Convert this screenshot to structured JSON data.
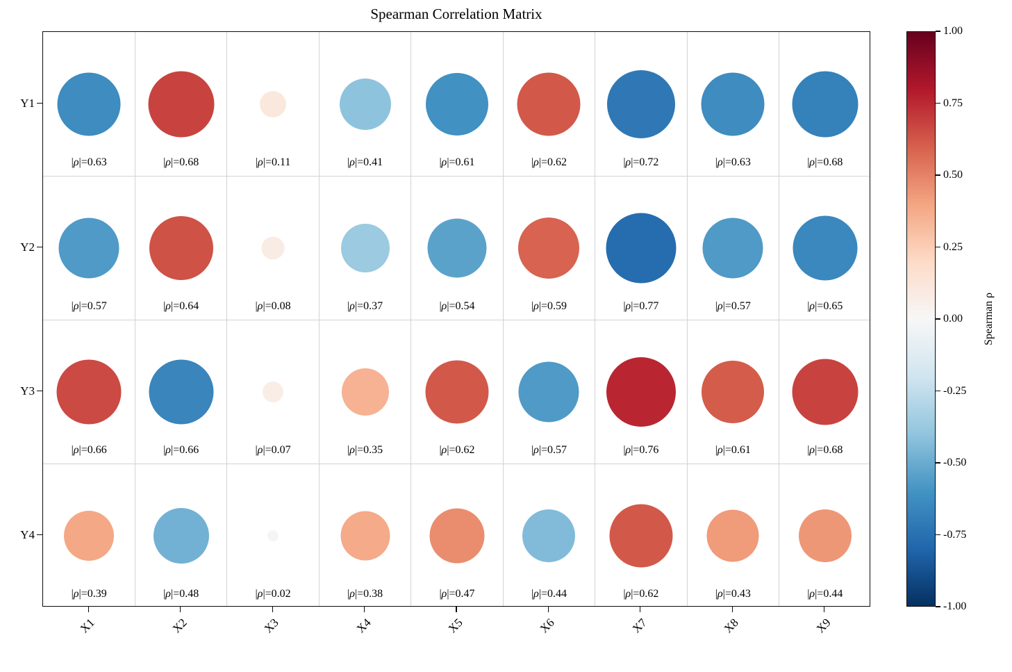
{
  "figure": {
    "background": "#ffffff",
    "title": "Spearman Correlation Matrix"
  },
  "chart_data": {
    "type": "scatter",
    "subtype": "correlation-bubble-matrix",
    "title": "Spearman Correlation Matrix",
    "x_categories": [
      "X1",
      "X2",
      "X3",
      "X4",
      "X5",
      "X6",
      "X7",
      "X8",
      "X9"
    ],
    "y_categories": [
      "Y1",
      "Y2",
      "Y3",
      "Y4"
    ],
    "grid": true,
    "rows": [
      {
        "y": "Y1",
        "cells": [
          {
            "x": "X1",
            "rho": -0.63,
            "label": "|ρ|=0.63",
            "color": "#3e8cc0",
            "d": 91
          },
          {
            "x": "X2",
            "rho": 0.68,
            "label": "|ρ|=0.68",
            "color": "#c8433f",
            "d": 95
          },
          {
            "x": "X3",
            "rho": 0.11,
            "label": "|ρ|=0.11",
            "color": "#fae8dd",
            "d": 38
          },
          {
            "x": "X4",
            "rho": -0.41,
            "label": "|ρ|=0.41",
            "color": "#8ec3dd",
            "d": 74
          },
          {
            "x": "X5",
            "rho": -0.61,
            "label": "|ρ|=0.61",
            "color": "#4191c2",
            "d": 90
          },
          {
            "x": "X6",
            "rho": 0.62,
            "label": "|ρ|=0.62",
            "color": "#d2594a",
            "d": 91
          },
          {
            "x": "X7",
            "rho": -0.72,
            "label": "|ρ|=0.72",
            "color": "#2f78b5",
            "d": 98
          },
          {
            "x": "X8",
            "rho": -0.63,
            "label": "|ρ|=0.63",
            "color": "#3e8cc0",
            "d": 91
          },
          {
            "x": "X9",
            "rho": -0.68,
            "label": "|ρ|=0.68",
            "color": "#3581ba",
            "d": 95
          }
        ]
      },
      {
        "y": "Y2",
        "cells": [
          {
            "x": "X1",
            "rho": -0.57,
            "label": "|ρ|=0.57",
            "color": "#4f9ac7",
            "d": 87
          },
          {
            "x": "X2",
            "rho": 0.64,
            "label": "|ρ|=0.64",
            "color": "#cf5246",
            "d": 92
          },
          {
            "x": "X3",
            "rho": 0.08,
            "label": "|ρ|=0.08",
            "color": "#f9ece4",
            "d": 33
          },
          {
            "x": "X4",
            "rho": -0.37,
            "label": "|ρ|=0.37",
            "color": "#9bcae1",
            "d": 70
          },
          {
            "x": "X5",
            "rho": -0.54,
            "label": "|ρ|=0.54",
            "color": "#5ba2cb",
            "d": 85
          },
          {
            "x": "X6",
            "rho": 0.59,
            "label": "|ρ|=0.59",
            "color": "#d76350",
            "d": 88
          },
          {
            "x": "X7",
            "rho": -0.77,
            "label": "|ρ|=0.77",
            "color": "#266daf",
            "d": 101
          },
          {
            "x": "X8",
            "rho": -0.57,
            "label": "|ρ|=0.57",
            "color": "#4f9ac7",
            "d": 87
          },
          {
            "x": "X9",
            "rho": -0.65,
            "label": "|ρ|=0.65",
            "color": "#3a88bd",
            "d": 93
          }
        ]
      },
      {
        "y": "Y3",
        "cells": [
          {
            "x": "X1",
            "rho": 0.66,
            "label": "|ρ|=0.66",
            "color": "#cb4a43",
            "d": 93
          },
          {
            "x": "X2",
            "rho": -0.66,
            "label": "|ρ|=0.66",
            "color": "#3985bc",
            "d": 93
          },
          {
            "x": "X3",
            "rho": 0.07,
            "label": "|ρ|=0.07",
            "color": "#f9ede6",
            "d": 30
          },
          {
            "x": "X4",
            "rho": 0.35,
            "label": "|ρ|=0.35",
            "color": "#f6b293",
            "d": 68
          },
          {
            "x": "X5",
            "rho": 0.62,
            "label": "|ρ|=0.62",
            "color": "#d2594a",
            "d": 91
          },
          {
            "x": "X6",
            "rho": -0.57,
            "label": "|ρ|=0.57",
            "color": "#4f9ac7",
            "d": 87
          },
          {
            "x": "X7",
            "rho": 0.76,
            "label": "|ρ|=0.76",
            "color": "#b92632",
            "d": 100
          },
          {
            "x": "X8",
            "rho": 0.61,
            "label": "|ρ|=0.61",
            "color": "#d45c4b",
            "d": 90
          },
          {
            "x": "X9",
            "rho": 0.68,
            "label": "|ρ|=0.68",
            "color": "#c8433f",
            "d": 95
          }
        ]
      },
      {
        "y": "Y4",
        "cells": [
          {
            "x": "X1",
            "rho": 0.39,
            "label": "|ρ|=0.39",
            "color": "#f4a885",
            "d": 72
          },
          {
            "x": "X2",
            "rho": -0.48,
            "label": "|ρ|=0.48",
            "color": "#72b1d3",
            "d": 80
          },
          {
            "x": "X3",
            "rho": -0.02,
            "label": "|ρ|=0.02",
            "color": "#f3f5f6",
            "d": 16
          },
          {
            "x": "X4",
            "rho": 0.38,
            "label": "|ρ|=0.38",
            "color": "#f5aa89",
            "d": 71
          },
          {
            "x": "X5",
            "rho": 0.47,
            "label": "|ρ|=0.47",
            "color": "#ea8d6f",
            "d": 79
          },
          {
            "x": "X6",
            "rho": -0.44,
            "label": "|ρ|=0.44",
            "color": "#82bbd9",
            "d": 76
          },
          {
            "x": "X7",
            "rho": 0.62,
            "label": "|ρ|=0.62",
            "color": "#d2594a",
            "d": 91
          },
          {
            "x": "X8",
            "rho": 0.43,
            "label": "|ρ|=0.43",
            "color": "#f09b7a",
            "d": 75
          },
          {
            "x": "X9",
            "rho": 0.44,
            "label": "|ρ|=0.44",
            "color": "#ee9777",
            "d": 76
          }
        ]
      }
    ],
    "colorbar": {
      "label": "Spearman ρ",
      "min": -1.0,
      "max": 1.0,
      "ticks": [
        "1.00",
        "0.75",
        "0.50",
        "0.25",
        "0.00",
        "-0.25",
        "-0.50",
        "-0.75",
        "-1.00"
      ],
      "gradient_stops_top_to_bottom": [
        "#67001f",
        "#b2182b",
        "#d6604d",
        "#f4a582",
        "#fddbc7",
        "#f7f7f7",
        "#d1e5f0",
        "#92c5de",
        "#4393c3",
        "#2166ac",
        "#053061"
      ]
    }
  }
}
